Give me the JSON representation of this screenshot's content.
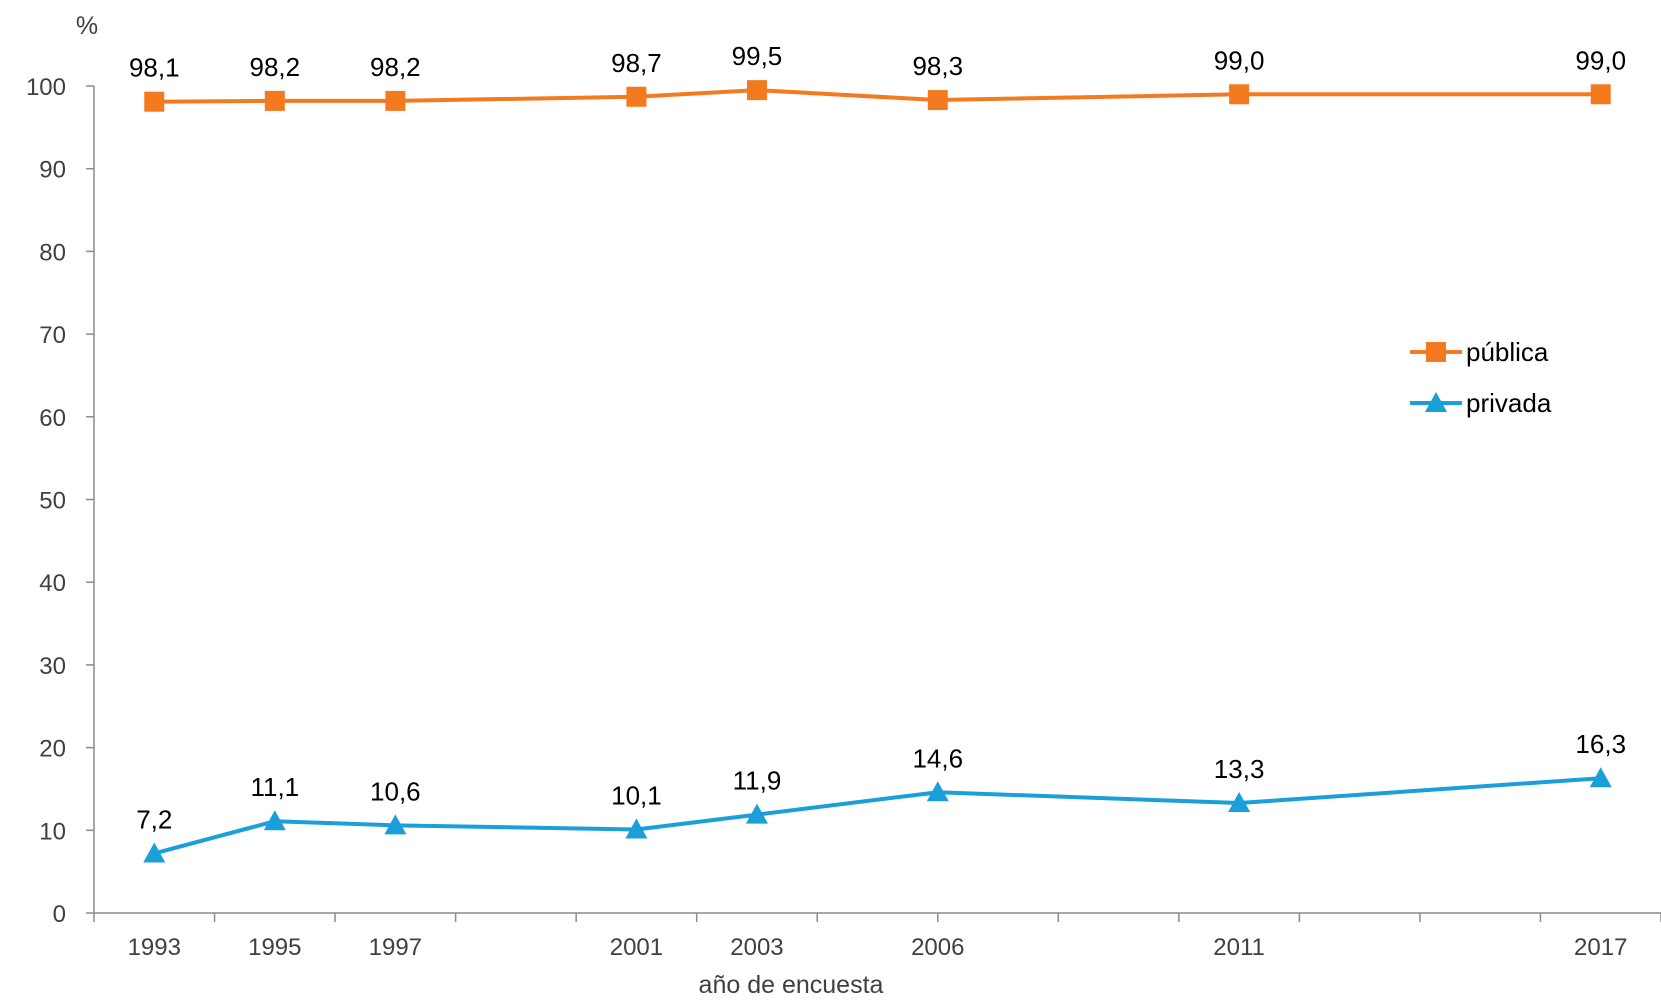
{
  "chart_data": {
    "type": "line",
    "title": "",
    "ylabel": "%",
    "xlabel": "año de encuesta",
    "ylim": [
      0,
      100
    ],
    "yticks": [
      0,
      10,
      20,
      30,
      40,
      50,
      60,
      70,
      80,
      90,
      100
    ],
    "x_range": [
      1992,
      2018
    ],
    "x_minor_ticks": [
      1992,
      1994,
      1996,
      1998,
      2000,
      2002,
      2004,
      2006,
      2008,
      2010,
      2012,
      2014,
      2016,
      2018
    ],
    "x": [
      1993,
      1995,
      1997,
      2001,
      2003,
      2006,
      2011,
      2017
    ],
    "x_tick_labels": [
      "1993",
      "1995",
      "1997",
      "2001",
      "2003",
      "2006",
      "2011",
      "2017"
    ],
    "series": [
      {
        "name": "pública",
        "color": "#F47A20",
        "marker": "square",
        "values": [
          98.1,
          98.2,
          98.2,
          98.7,
          99.5,
          98.3,
          99.0,
          99.0
        ],
        "labels": [
          "98,1",
          "98,2",
          "98,2",
          "98,7",
          "99,5",
          "98,3",
          "99,0",
          "99,0"
        ]
      },
      {
        "name": "privada",
        "color": "#1A9FD9",
        "marker": "triangle",
        "values": [
          7.2,
          11.1,
          10.6,
          10.1,
          11.9,
          14.6,
          13.3,
          16.3
        ],
        "labels": [
          "7,2",
          "11,1",
          "10,6",
          "10,1",
          "11,9",
          "14,6",
          "13,3",
          "16,3"
        ]
      }
    ],
    "legend_position": "right",
    "grid": false
  }
}
